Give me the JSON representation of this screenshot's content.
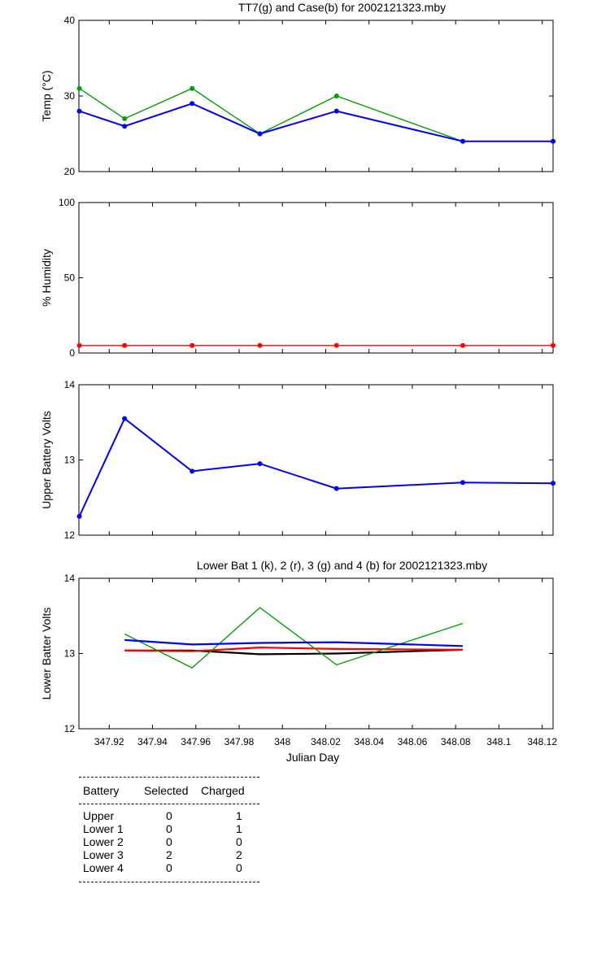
{
  "chart_data": [
    {
      "type": "line",
      "title": "TT7(g) and Case(b) for 2002121323.mby",
      "xlabel": "",
      "ylabel": "Temp  (°C)",
      "xlim": [
        347.906,
        348.125
      ],
      "ylim": [
        20,
        40
      ],
      "yticks": [
        "20",
        "30",
        "40"
      ],
      "x": [
        347.9062,
        347.9271,
        347.9583,
        347.9896,
        348.025,
        348.0833,
        348.125
      ],
      "series": [
        {
          "color": "#00a000",
          "values": [
            31,
            27,
            31,
            25,
            30,
            24,
            24
          ]
        },
        {
          "color": "#0000ff",
          "values": [
            28,
            26,
            29,
            25,
            28,
            24,
            24
          ]
        }
      ]
    },
    {
      "type": "line",
      "title": "",
      "xlabel": "",
      "ylabel": "% Humidity",
      "xlim": [
        347.906,
        348.125
      ],
      "ylim": [
        0,
        100
      ],
      "yticks": [
        "0",
        "50",
        "100"
      ],
      "x": [
        347.9062,
        347.9271,
        347.9583,
        347.9896,
        348.025,
        348.0833,
        348.125
      ],
      "series": [
        {
          "color": "#ff0000",
          "values": [
            5,
            5,
            5,
            5,
            5,
            5,
            5
          ]
        }
      ]
    },
    {
      "type": "line",
      "title": "",
      "xlabel": "",
      "ylabel": "Upper Battery Volts",
      "xlim": [
        347.906,
        348.125
      ],
      "ylim": [
        12,
        14
      ],
      "yticks": [
        "12",
        "13",
        "14"
      ],
      "x": [
        347.9062,
        347.9271,
        347.9583,
        347.9896,
        348.025,
        348.0833,
        348.125
      ],
      "series": [
        {
          "color": "#0000ff",
          "values": [
            12.25,
            13.55,
            12.85,
            12.95,
            12.62,
            12.7,
            12.69
          ]
        }
      ]
    },
    {
      "type": "line",
      "title": "Lower Bat 1 (k), 2 (r), 3 (g) and 4 (b) for 2002121323.mby",
      "xlabel": "Julian Day",
      "ylabel": "Lower Batter Volts",
      "xlim": [
        347.906,
        348.125
      ],
      "ylim": [
        12,
        14
      ],
      "yticks": [
        "12",
        "13",
        "14"
      ],
      "xticks": [
        "347.92",
        "347.94",
        "347.96",
        "347.98",
        "348",
        "348.02",
        "348.04",
        "348.06",
        "348.08",
        "348.1",
        "348.12"
      ],
      "x": [
        347.9271,
        347.9583,
        347.9896,
        348.025,
        348.0833
      ],
      "series": [
        {
          "color": "#000000",
          "values": [
            13.04,
            13.04,
            12.99,
            13.0,
            13.05
          ]
        },
        {
          "color": "#ff0000",
          "values": [
            13.04,
            13.03,
            13.08,
            13.06,
            13.05
          ]
        },
        {
          "color": "#00a000",
          "values": [
            13.26,
            12.81,
            13.61,
            12.85,
            13.4
          ]
        },
        {
          "color": "#0000ff",
          "values": [
            13.18,
            13.12,
            13.14,
            13.15,
            13.1
          ]
        }
      ]
    }
  ],
  "battery_table": {
    "headers": [
      "Battery",
      "Selected",
      "Charged"
    ],
    "rows": [
      [
        "Upper",
        "0",
        "1"
      ],
      [
        "Lower 1",
        "0",
        "1"
      ],
      [
        "Lower 2",
        "0",
        "0"
      ],
      [
        "Lower 3",
        "2",
        "2"
      ],
      [
        "Lower 4",
        "0",
        "0"
      ]
    ]
  }
}
